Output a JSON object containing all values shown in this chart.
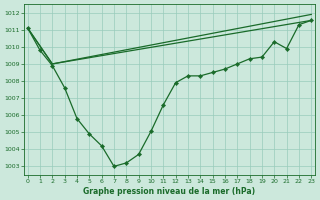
{
  "title": "Graphe pression niveau de la mer (hPa)",
  "background_color": "#cce8dc",
  "grid_color": "#99ccbb",
  "line_color": "#1a6b2a",
  "xlim": [
    -0.3,
    23.3
  ],
  "ylim": [
    1002.5,
    1012.5
  ],
  "yticks": [
    1003,
    1004,
    1005,
    1006,
    1007,
    1008,
    1009,
    1010,
    1011,
    1012
  ],
  "xticks": [
    0,
    1,
    2,
    3,
    4,
    5,
    6,
    7,
    8,
    9,
    10,
    11,
    12,
    13,
    14,
    15,
    16,
    17,
    18,
    19,
    20,
    21,
    22,
    23
  ],
  "series1": {
    "x": [
      0,
      1,
      2,
      3,
      4,
      5,
      6,
      7,
      8,
      9,
      10,
      11,
      12,
      13,
      14,
      15,
      16,
      17,
      18,
      19,
      20,
      21,
      22,
      23
    ],
    "y": [
      1011.1,
      1009.8,
      1008.9,
      1007.6,
      1005.8,
      1004.9,
      1004.2,
      1003.0,
      1003.2,
      1003.7,
      1005.05,
      1006.6,
      1007.9,
      1008.3,
      1008.3,
      1008.5,
      1008.7,
      1009.0,
      1009.3,
      1009.4,
      1010.3,
      1009.9,
      1011.3,
      1011.55
    ]
  },
  "series2": {
    "x": [
      0,
      2,
      23
    ],
    "y": [
      1011.1,
      1009.0,
      1011.55
    ]
  },
  "series3": {
    "x": [
      0,
      2,
      23
    ],
    "y": [
      1011.1,
      1009.0,
      1011.9
    ]
  }
}
